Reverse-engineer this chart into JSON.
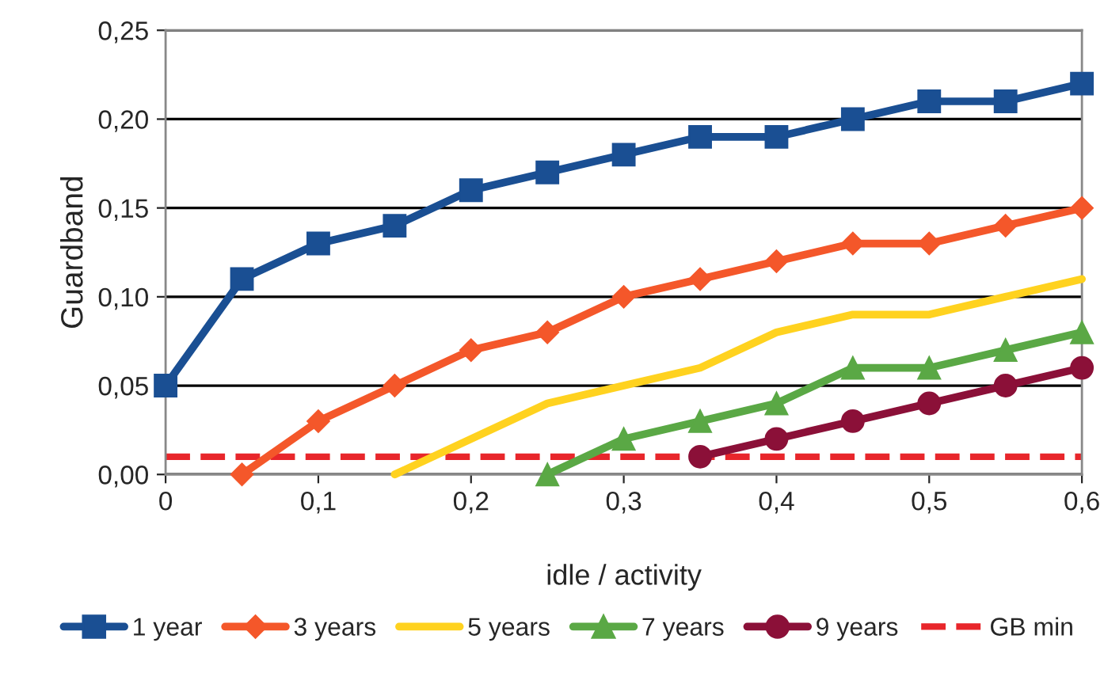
{
  "chart_data": {
    "type": "line",
    "ylabel": "Guardband",
    "xlabel": "idle / activity",
    "xlim": [
      0,
      0.6
    ],
    "ylim": [
      0,
      0.25
    ],
    "xticks": [
      0,
      {
        "value": 0.1,
        "label": "0,1"
      },
      {
        "value": 0.2,
        "label": "0,2"
      },
      {
        "value": 0.3,
        "label": "0,3"
      },
      {
        "value": 0.4,
        "label": "0,4"
      },
      {
        "value": 0.5,
        "label": "0,5"
      },
      {
        "value": 0.6,
        "label": "0,6"
      }
    ],
    "yticks": [
      {
        "value": 0,
        "label": "0,00"
      },
      {
        "value": 0.05,
        "label": "0,05"
      },
      {
        "value": 0.1,
        "label": "0,10"
      },
      {
        "value": 0.15,
        "label": "0,15"
      },
      {
        "value": 0.2,
        "label": "0,20"
      },
      {
        "value": 0.25,
        "label": "0,25"
      }
    ],
    "grid": "y",
    "legend": "bottom",
    "series": [
      {
        "name": "1 year",
        "color": "#1a4f93",
        "marker": "square",
        "x": [
          0,
          0.05,
          0.1,
          0.15,
          0.2,
          0.25,
          0.3,
          0.35,
          0.4,
          0.45,
          0.5,
          0.55,
          0.6
        ],
        "values": [
          0.05,
          0.11,
          0.13,
          0.14,
          0.16,
          0.17,
          0.18,
          0.19,
          0.19,
          0.2,
          0.21,
          0.21,
          0.22
        ]
      },
      {
        "name": "3 years",
        "color": "#f4572a",
        "marker": "diamond",
        "x": [
          0.05,
          0.1,
          0.15,
          0.2,
          0.25,
          0.3,
          0.35,
          0.4,
          0.45,
          0.5,
          0.55,
          0.6
        ],
        "values": [
          0,
          0.03,
          0.05,
          0.07,
          0.08,
          0.1,
          0.11,
          0.12,
          0.13,
          0.13,
          0.14,
          0.15
        ]
      },
      {
        "name": "5 years",
        "color": "#ffd21f",
        "marker": "none",
        "x": [
          0.15,
          0.2,
          0.25,
          0.3,
          0.35,
          0.4,
          0.45,
          0.5,
          0.55,
          0.6
        ],
        "values": [
          0,
          0.02,
          0.04,
          0.05,
          0.06,
          0.08,
          0.09,
          0.09,
          0.1,
          0.11
        ]
      },
      {
        "name": "7 years",
        "color": "#5aa845",
        "marker": "triangle",
        "x": [
          0.25,
          0.3,
          0.35,
          0.4,
          0.45,
          0.5,
          0.55,
          0.6
        ],
        "values": [
          0,
          0.02,
          0.03,
          0.04,
          0.06,
          0.06,
          0.07,
          0.08
        ]
      },
      {
        "name": "9 years",
        "color": "#8b1038",
        "marker": "circle",
        "x": [
          0.35,
          0.4,
          0.45,
          0.5,
          0.55,
          0.6
        ],
        "values": [
          0.01,
          0.02,
          0.03,
          0.04,
          0.05,
          0.06
        ]
      }
    ],
    "ref_lines": [
      {
        "axis": "y",
        "value": 0.01,
        "label": "GB min",
        "color": "#e8262b",
        "line_style": "dashed"
      }
    ]
  }
}
